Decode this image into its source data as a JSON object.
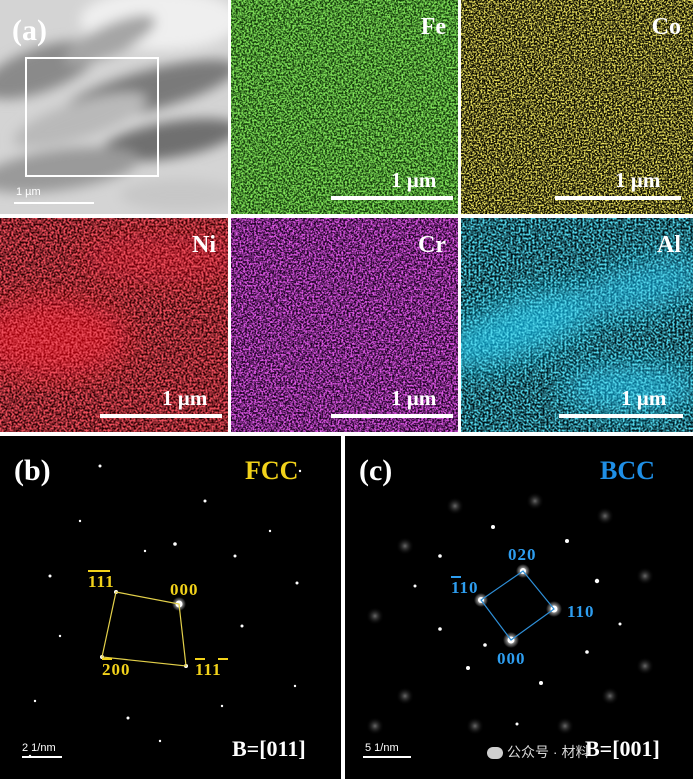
{
  "panel_a": {
    "label": "(a)",
    "tem_scalebar": "1 µm",
    "maps": [
      {
        "element": "Fe",
        "scalebar": "1 µm",
        "color": "#39c21a"
      },
      {
        "element": "Co",
        "scalebar": "1 µm",
        "color": "#e6d21e"
      },
      {
        "element": "Ni",
        "scalebar": "1 µm",
        "color": "#e0141c"
      },
      {
        "element": "Cr",
        "scalebar": "1 µm",
        "color": "#c21ad0"
      },
      {
        "element": "Al",
        "scalebar": "1 µm",
        "color": "#18b8e0"
      }
    ]
  },
  "panel_b": {
    "label": "(b)",
    "phase": "FCC",
    "phase_color": "#f2d21a",
    "spots": {
      "000": "000",
      "111bar": "111",
      "200bar": "200",
      "111bar2": "111"
    },
    "zone_axis": "B=[011]",
    "scalebar": "2 1/nm"
  },
  "panel_c": {
    "label": "(c)",
    "phase": "BCC",
    "phase_color": "#1f8fe6",
    "spots": {
      "020": "020",
      "110bar": "110",
      "110": "110",
      "000": "000"
    },
    "zone_axis": "B=[001]",
    "scalebar": "5 1/nm"
  },
  "watermark": {
    "text": "公众号 · 材料"
  }
}
